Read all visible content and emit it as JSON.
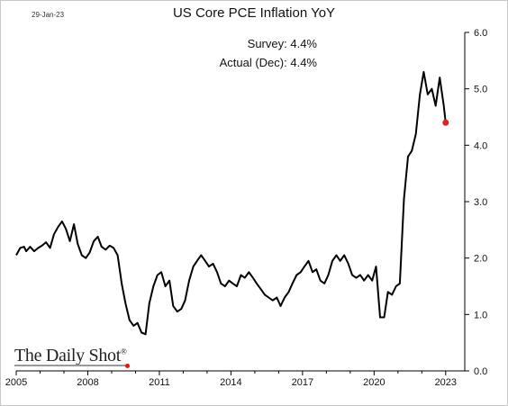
{
  "date_stamp": "29-Jan-23",
  "annotations": {
    "survey_label": "Survey:",
    "survey_value": "4.4%",
    "actual_label": "Actual (Dec):",
    "actual_value": "4.4%"
  },
  "logo": {
    "text": "The Daily Shot",
    "mark": "®"
  },
  "colors": {
    "line": "#000000",
    "marker": "#e02020",
    "axis": "#000000"
  },
  "chart_data": {
    "type": "line",
    "title": "US Core PCE Inflation YoY",
    "xlabel": "",
    "ylabel": "",
    "xlim": [
      2005.0,
      2023.8
    ],
    "ylim": [
      0.0,
      6.0
    ],
    "x_ticks": [
      2005,
      2008,
      2011,
      2014,
      2017,
      2020,
      2023
    ],
    "y_ticks": [
      0.0,
      1.0,
      2.0,
      3.0,
      4.0,
      5.0,
      6.0
    ],
    "y_axis_side": "right",
    "grid": false,
    "legend": "none",
    "series": [
      {
        "points": [
          [
            2005.0,
            2.05
          ],
          [
            2005.17,
            2.18
          ],
          [
            2005.33,
            2.2
          ],
          [
            2005.42,
            2.12
          ],
          [
            2005.58,
            2.2
          ],
          [
            2005.75,
            2.12
          ],
          [
            2005.92,
            2.18
          ],
          [
            2006.08,
            2.22
          ],
          [
            2006.25,
            2.28
          ],
          [
            2006.42,
            2.18
          ],
          [
            2006.58,
            2.42
          ],
          [
            2006.75,
            2.55
          ],
          [
            2006.92,
            2.65
          ],
          [
            2007.08,
            2.52
          ],
          [
            2007.25,
            2.3
          ],
          [
            2007.42,
            2.6
          ],
          [
            2007.58,
            2.25
          ],
          [
            2007.75,
            2.05
          ],
          [
            2007.92,
            2.0
          ],
          [
            2008.08,
            2.1
          ],
          [
            2008.25,
            2.3
          ],
          [
            2008.42,
            2.38
          ],
          [
            2008.58,
            2.2
          ],
          [
            2008.75,
            2.15
          ],
          [
            2008.92,
            2.22
          ],
          [
            2009.08,
            2.18
          ],
          [
            2009.25,
            2.05
          ],
          [
            2009.42,
            1.55
          ],
          [
            2009.58,
            1.2
          ],
          [
            2009.75,
            0.9
          ],
          [
            2009.92,
            0.8
          ],
          [
            2010.08,
            0.85
          ],
          [
            2010.25,
            0.68
          ],
          [
            2010.42,
            0.65
          ],
          [
            2010.58,
            1.2
          ],
          [
            2010.75,
            1.5
          ],
          [
            2010.92,
            1.7
          ],
          [
            2011.08,
            1.75
          ],
          [
            2011.25,
            1.5
          ],
          [
            2011.42,
            1.6
          ],
          [
            2011.58,
            1.15
          ],
          [
            2011.75,
            1.05
          ],
          [
            2011.92,
            1.1
          ],
          [
            2012.08,
            1.25
          ],
          [
            2012.25,
            1.6
          ],
          [
            2012.42,
            1.85
          ],
          [
            2012.58,
            1.95
          ],
          [
            2012.75,
            2.05
          ],
          [
            2012.92,
            1.95
          ],
          [
            2013.08,
            1.85
          ],
          [
            2013.25,
            1.9
          ],
          [
            2013.42,
            1.75
          ],
          [
            2013.58,
            1.55
          ],
          [
            2013.75,
            1.5
          ],
          [
            2013.92,
            1.6
          ],
          [
            2014.08,
            1.55
          ],
          [
            2014.25,
            1.5
          ],
          [
            2014.42,
            1.7
          ],
          [
            2014.58,
            1.65
          ],
          [
            2014.75,
            1.75
          ],
          [
            2014.92,
            1.65
          ],
          [
            2015.08,
            1.55
          ],
          [
            2015.25,
            1.45
          ],
          [
            2015.42,
            1.35
          ],
          [
            2015.58,
            1.3
          ],
          [
            2015.75,
            1.25
          ],
          [
            2015.92,
            1.3
          ],
          [
            2016.08,
            1.15
          ],
          [
            2016.25,
            1.3
          ],
          [
            2016.42,
            1.4
          ],
          [
            2016.58,
            1.55
          ],
          [
            2016.75,
            1.7
          ],
          [
            2016.92,
            1.75
          ],
          [
            2017.08,
            1.85
          ],
          [
            2017.25,
            1.95
          ],
          [
            2017.42,
            1.75
          ],
          [
            2017.58,
            1.8
          ],
          [
            2017.75,
            1.6
          ],
          [
            2017.92,
            1.55
          ],
          [
            2018.08,
            1.7
          ],
          [
            2018.25,
            1.95
          ],
          [
            2018.42,
            2.05
          ],
          [
            2018.58,
            1.95
          ],
          [
            2018.75,
            2.05
          ],
          [
            2018.92,
            1.9
          ],
          [
            2019.08,
            1.7
          ],
          [
            2019.25,
            1.65
          ],
          [
            2019.42,
            1.7
          ],
          [
            2019.58,
            1.6
          ],
          [
            2019.75,
            1.7
          ],
          [
            2019.92,
            1.6
          ],
          [
            2020.08,
            1.85
          ],
          [
            2020.25,
            0.95
          ],
          [
            2020.42,
            0.95
          ],
          [
            2020.58,
            1.4
          ],
          [
            2020.75,
            1.35
          ],
          [
            2020.92,
            1.5
          ],
          [
            2021.08,
            1.55
          ],
          [
            2021.25,
            3.05
          ],
          [
            2021.42,
            3.8
          ],
          [
            2021.58,
            3.9
          ],
          [
            2021.75,
            4.2
          ],
          [
            2021.92,
            4.9
          ],
          [
            2022.08,
            5.3
          ],
          [
            2022.25,
            4.9
          ],
          [
            2022.42,
            5.0
          ],
          [
            2022.58,
            4.7
          ],
          [
            2022.75,
            5.2
          ],
          [
            2022.92,
            4.7
          ],
          [
            2023.0,
            4.4
          ]
        ]
      }
    ],
    "highlight_point": [
      2023.0,
      4.4
    ]
  }
}
